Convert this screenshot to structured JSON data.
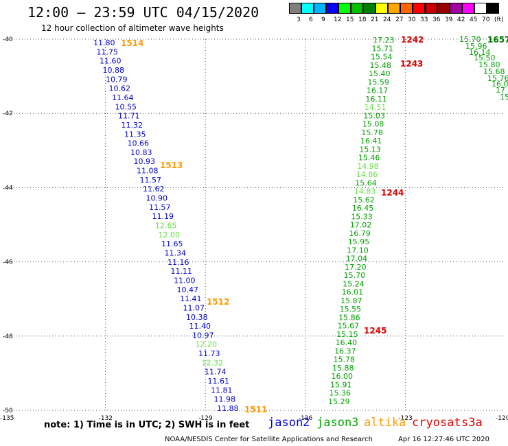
{
  "header": {
    "title": "12:00 – 23:59 UTC 04/15/2020",
    "subtitle": "12 hour collection of altimeter wave heights"
  },
  "color_scale": {
    "colors": [
      "#7f7f7f",
      "#00ffff",
      "#00b4ff",
      "#0000ff",
      "#00ff00",
      "#00c000",
      "#008000",
      "#ffff00",
      "#ffa500",
      "#ff6400",
      "#ff0000",
      "#c80000",
      "#960000",
      "#a000a0",
      "#ff00ff",
      "#ffffff",
      "#000000"
    ],
    "labels": [
      "3",
      "6",
      "9",
      "12",
      "15",
      "18",
      "21",
      "24",
      "27",
      "30",
      "33",
      "36",
      "39",
      "42",
      "45",
      "70",
      "(ft)"
    ]
  },
  "axes": {
    "lat_labels": [
      "-40",
      "-42",
      "-44",
      "-46",
      "-48",
      "-50"
    ],
    "lon_labels": [
      "-135",
      "-132",
      "-129",
      "-126",
      "-123",
      "-120"
    ]
  },
  "tracks": {
    "jason2": {
      "color": "#0000cc",
      "lon": [
        -132.0,
        -130.6
      ],
      "values": [
        "11.80",
        "11.75",
        "11.60",
        "10.88",
        "10.79",
        "10.62",
        "11.64",
        "10.55",
        "11.71",
        "11.32",
        "11.35",
        "10.66",
        "10.83",
        "10.93",
        "11.08",
        "11.57",
        "11.62",
        "10.90",
        "11.57",
        "11.19",
        "12.65",
        "12.00",
        "11.65",
        "11.34",
        "11.16",
        "11.11",
        "11.00",
        "10.47",
        "11.41",
        "11.07",
        "10.38",
        "11.40",
        "10.97",
        "12.20",
        "11.73",
        "12.32",
        "11.74",
        "11.61",
        "11.81",
        "11.98",
        "11.88"
      ]
    },
    "jason3": {
      "color": "#00a000",
      "lon": [
        -123.0,
        -126.0
      ],
      "values": [
        "17.23",
        "15.71",
        "15.54",
        "15.48",
        "15.40",
        "15.59",
        "16.17",
        "16.11",
        "14.51",
        "15.03",
        "15.08",
        "15.78",
        "16.41",
        "15.13",
        "15.46",
        "14.98",
        "14.86",
        "15.64",
        "14.83",
        "15.62",
        "16.45",
        "15.33",
        "17.02",
        "16.79",
        "15.95",
        "17.10",
        "17.04",
        "17.20",
        "15.70",
        "15.24",
        "16.01",
        "15.87",
        "15.55",
        "15.86",
        "15.67",
        "15.15",
        "16.40",
        "16.37",
        "15.78",
        "15.88",
        "16.00",
        "15.91",
        "15.36",
        "15.29"
      ]
    },
    "diagonal": {
      "values": [
        "15.70",
        "15.96",
        "16.14",
        "15.50",
        "15.80",
        "15.68",
        "15.76",
        "16.01",
        "17",
        "15"
      ],
      "color": "#00a000"
    }
  },
  "time_labels": [
    {
      "text": "1514",
      "color": "#ff9900"
    },
    {
      "text": "1513",
      "color": "#ff9900"
    },
    {
      "text": "1512",
      "color": "#ff9900"
    },
    {
      "text": "1511",
      "color": "#ff9900"
    },
    {
      "text": "1242",
      "color": "#dd0000"
    },
    {
      "text": "1243",
      "color": "#dd0000"
    },
    {
      "text": "1244",
      "color": "#dd0000"
    },
    {
      "text": "1245",
      "color": "#dd0000"
    },
    {
      "text": "1657",
      "color": "#007700"
    }
  ],
  "footer": {
    "note": "note: 1) Time is in UTC; 2) SWH is in feet",
    "satellites": [
      {
        "name": "jason2",
        "color": "#0000dd"
      },
      {
        "name": "jason3",
        "color": "#00aa00"
      },
      {
        "name": "altika",
        "color": "#ff9900"
      },
      {
        "name": "cryosat",
        "color": "#ee0000"
      },
      {
        "name": "s3a",
        "color": "#cc0000"
      }
    ],
    "credit": "NOAA/NESDIS Center for Satellite Applications and Research",
    "timestamp": "Apr 16 12:27:46 UTC 2020"
  }
}
